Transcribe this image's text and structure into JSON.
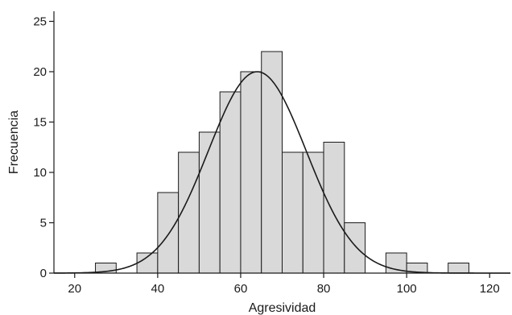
{
  "chart_data": {
    "type": "bar",
    "subtype": "histogram",
    "title": "",
    "xlabel": "Agresividad",
    "ylabel": "Frecuencia",
    "xlim": [
      15,
      125
    ],
    "ylim": [
      0,
      26
    ],
    "xticks": [
      20,
      40,
      60,
      80,
      100,
      120
    ],
    "yticks": [
      0,
      5,
      10,
      15,
      20,
      25
    ],
    "xtick_labels": [
      "20",
      "40",
      "60",
      "80",
      "100",
      "120"
    ],
    "ytick_labels": [
      "0",
      "5",
      "10",
      "15",
      "20",
      "25"
    ],
    "bins": [
      {
        "start": 25,
        "end": 30,
        "count": 1
      },
      {
        "start": 35,
        "end": 40,
        "count": 2
      },
      {
        "start": 40,
        "end": 45,
        "count": 8
      },
      {
        "start": 45,
        "end": 50,
        "count": 12
      },
      {
        "start": 50,
        "end": 55,
        "count": 14
      },
      {
        "start": 55,
        "end": 60,
        "count": 18
      },
      {
        "start": 60,
        "end": 65,
        "count": 20
      },
      {
        "start": 65,
        "end": 70,
        "count": 22
      },
      {
        "start": 70,
        "end": 75,
        "count": 12
      },
      {
        "start": 75,
        "end": 80,
        "count": 12
      },
      {
        "start": 80,
        "end": 85,
        "count": 13
      },
      {
        "start": 85,
        "end": 90,
        "count": 5
      },
      {
        "start": 95,
        "end": 100,
        "count": 2
      },
      {
        "start": 100,
        "end": 105,
        "count": 1
      },
      {
        "start": 110,
        "end": 115,
        "count": 1
      }
    ],
    "normal_curve": {
      "mean": 64,
      "sd": 11.8,
      "peak": 20,
      "x_range": [
        15,
        125
      ]
    },
    "grid": false,
    "legend": "none",
    "colors": {
      "bar_fill": "#d9d9d9",
      "bar_edge": "#1a1a1a",
      "curve": "#1a1a1a",
      "axis": "#1a1a1a"
    }
  }
}
